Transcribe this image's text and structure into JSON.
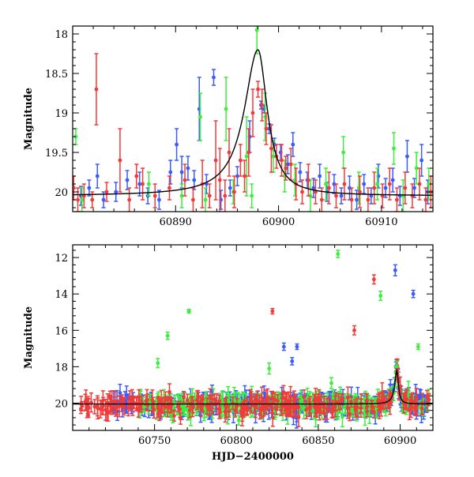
{
  "chart_data": [
    {
      "type": "scatter",
      "panel": "top",
      "title": "",
      "xlabel": "",
      "ylabel": "Magnitude",
      "xlim": [
        60880,
        60915
      ],
      "ylim": [
        20.25,
        17.9
      ],
      "y_inverted": true,
      "xticks": [
        60890,
        60900,
        60910
      ],
      "xtick_labels": [
        "60890",
        "60900",
        "60910"
      ],
      "yticks": [
        18,
        18.5,
        19,
        19.5,
        20
      ],
      "ytick_labels": [
        "18",
        "18.5",
        "19",
        "19.5",
        "20"
      ],
      "grid": false,
      "legend": "none",
      "model_curve": {
        "color": "#000000",
        "peak_x": 60898.0,
        "peak_y": 18.2,
        "baseline_y": 20.05
      },
      "series": [
        {
          "color": "#3a5bff",
          "points": [
            [
              60880.8,
              20.05,
              0.12
            ],
            [
              60881.6,
              19.95,
              0.1
            ],
            [
              60882.4,
              19.8,
              0.15
            ],
            [
              60883.0,
              20.1,
              0.1
            ],
            [
              60884.2,
              20.0,
              0.12
            ],
            [
              60885.3,
              19.85,
              0.12
            ],
            [
              60886.5,
              19.9,
              0.15
            ],
            [
              60887.3,
              20.05,
              0.1
            ],
            [
              60888.4,
              20.1,
              0.12
            ],
            [
              60889.5,
              19.75,
              0.15
            ],
            [
              60890.1,
              19.4,
              0.2
            ],
            [
              60890.6,
              19.75,
              0.2
            ],
            [
              60891.2,
              19.7,
              0.15
            ],
            [
              60891.8,
              19.85,
              0.12
            ],
            [
              60892.3,
              18.95,
              0.4
            ],
            [
              60893.0,
              19.9,
              0.12
            ],
            [
              60893.7,
              18.55,
              0.1
            ],
            [
              60894.4,
              20.1,
              0.12
            ],
            [
              60895.3,
              19.95,
              0.1
            ],
            [
              60896.0,
              19.8,
              0.12
            ],
            [
              60897.2,
              19.3,
              0.2
            ],
            [
              60898.3,
              18.9,
              0.05
            ],
            [
              60898.6,
              18.95,
              0.05
            ],
            [
              60899.1,
              19.2,
              0.06
            ],
            [
              60899.6,
              19.4,
              0.08
            ],
            [
              60900.2,
              19.5,
              0.1
            ],
            [
              60900.9,
              19.65,
              0.12
            ],
            [
              60901.4,
              19.4,
              0.15
            ],
            [
              60902.1,
              19.75,
              0.12
            ],
            [
              60902.8,
              19.85,
              0.1
            ],
            [
              60903.4,
              19.95,
              0.12
            ],
            [
              60904.0,
              19.8,
              0.15
            ],
            [
              60904.7,
              20.0,
              0.12
            ],
            [
              60905.4,
              19.9,
              0.12
            ],
            [
              60906.1,
              20.05,
              0.1
            ],
            [
              60906.9,
              19.95,
              0.15
            ],
            [
              60907.6,
              20.1,
              0.12
            ],
            [
              60908.3,
              19.9,
              0.12
            ],
            [
              60909.0,
              20.05,
              0.1
            ],
            [
              60909.7,
              19.8,
              0.15
            ],
            [
              60910.4,
              19.95,
              0.12
            ],
            [
              60911.1,
              19.85,
              0.15
            ],
            [
              60911.8,
              20.05,
              0.12
            ],
            [
              60912.5,
              19.55,
              0.2
            ],
            [
              60913.2,
              19.95,
              0.12
            ],
            [
              60913.9,
              19.6,
              0.2
            ],
            [
              60914.5,
              20.0,
              0.15
            ]
          ]
        },
        {
          "color": "#3bef3b",
          "points": [
            [
              60880.3,
              19.3,
              0.1
            ],
            [
              60880.9,
              20.1,
              0.15
            ],
            [
              60887.4,
              19.9,
              0.15
            ],
            [
              60890.6,
              20.05,
              0.15
            ],
            [
              60892.4,
              19.05,
              0.3
            ],
            [
              60892.9,
              20.1,
              0.15
            ],
            [
              60894.9,
              18.95,
              0.4
            ],
            [
              60895.6,
              20.0,
              0.15
            ],
            [
              60896.9,
              19.55,
              0.5
            ],
            [
              60897.4,
              20.05,
              0.15
            ],
            [
              60897.9,
              17.95,
              0.3
            ],
            [
              60898.7,
              19.05,
              0.3
            ],
            [
              60899.5,
              19.55,
              0.2
            ],
            [
              60900.6,
              19.8,
              0.2
            ],
            [
              60901.6,
              19.85,
              0.2
            ],
            [
              60903.1,
              20.05,
              0.2
            ],
            [
              60904.6,
              19.9,
              0.2
            ],
            [
              60906.3,
              19.5,
              0.2
            ],
            [
              60907.8,
              19.95,
              0.2
            ],
            [
              60909.6,
              19.9,
              0.2
            ],
            [
              60911.2,
              19.45,
              0.2
            ],
            [
              60912.1,
              20.05,
              0.2
            ],
            [
              60913.4,
              19.7,
              0.2
            ],
            [
              60914.6,
              19.9,
              0.2
            ]
          ]
        },
        {
          "color": "#f03b3b",
          "points": [
            [
              60880.1,
              19.95,
              0.15
            ],
            [
              60880.5,
              20.1,
              0.15
            ],
            [
              60881.1,
              20.05,
              0.15
            ],
            [
              60881.9,
              20.1,
              0.1
            ],
            [
              60882.3,
              18.7,
              0.45
            ],
            [
              60883.3,
              20.0,
              0.12
            ],
            [
              60884.6,
              19.6,
              0.4
            ],
            [
              60885.5,
              20.1,
              0.15
            ],
            [
              60886.2,
              19.8,
              0.15
            ],
            [
              60886.8,
              19.9,
              0.2
            ],
            [
              60888.0,
              20.05,
              0.15
            ],
            [
              60889.4,
              19.95,
              0.15
            ],
            [
              60890.9,
              19.85,
              0.2
            ],
            [
              60891.7,
              20.1,
              0.15
            ],
            [
              60892.6,
              19.9,
              0.3
            ],
            [
              60893.3,
              20.05,
              0.15
            ],
            [
              60893.9,
              19.6,
              0.5
            ],
            [
              60894.3,
              19.85,
              0.4
            ],
            [
              60894.8,
              20.05,
              0.2
            ],
            [
              60895.2,
              19.5,
              0.3
            ],
            [
              60895.7,
              20.0,
              0.2
            ],
            [
              60896.3,
              19.6,
              0.2
            ],
            [
              60896.7,
              19.8,
              0.2
            ],
            [
              60897.1,
              19.5,
              0.3
            ],
            [
              60897.5,
              19.0,
              0.3
            ],
            [
              60898.0,
              18.7,
              0.1
            ],
            [
              60898.4,
              18.9,
              0.2
            ],
            [
              60898.8,
              19.2,
              0.2
            ],
            [
              60899.3,
              19.45,
              0.3
            ],
            [
              60899.8,
              19.55,
              0.15
            ],
            [
              60900.3,
              19.6,
              0.2
            ],
            [
              60900.7,
              19.7,
              0.15
            ],
            [
              60901.2,
              19.65,
              0.2
            ],
            [
              60901.7,
              19.9,
              0.2
            ],
            [
              60902.3,
              20.0,
              0.15
            ],
            [
              60902.9,
              19.85,
              0.2
            ],
            [
              60903.6,
              20.0,
              0.15
            ],
            [
              60904.2,
              20.1,
              0.15
            ],
            [
              60904.9,
              19.95,
              0.2
            ],
            [
              60905.6,
              20.05,
              0.15
            ],
            [
              60906.4,
              19.9,
              0.2
            ],
            [
              60907.1,
              20.1,
              0.15
            ],
            [
              60907.9,
              20.0,
              0.2
            ],
            [
              60908.7,
              20.1,
              0.15
            ],
            [
              60909.3,
              19.95,
              0.2
            ],
            [
              60910.1,
              20.05,
              0.15
            ],
            [
              60910.8,
              19.9,
              0.2
            ],
            [
              60911.5,
              20.1,
              0.15
            ],
            [
              60912.3,
              19.95,
              0.2
            ],
            [
              60913.0,
              20.05,
              0.15
            ],
            [
              60913.7,
              19.9,
              0.2
            ],
            [
              60914.3,
              20.1,
              0.15
            ],
            [
              60914.8,
              20.0,
              0.2
            ]
          ]
        }
      ]
    },
    {
      "type": "scatter",
      "panel": "bottom",
      "title": "",
      "xlabel": "HJD−2400000",
      "ylabel": "Magnitude",
      "xlim": [
        60700,
        60920
      ],
      "ylim": [
        21.5,
        11.3
      ],
      "y_inverted": true,
      "xticks": [
        60750,
        60800,
        60850,
        60900
      ],
      "xtick_labels": [
        "60750",
        "60800",
        "60850",
        "60900"
      ],
      "yticks": [
        12,
        14,
        16,
        18,
        20
      ],
      "ytick_labels": [
        "12",
        "14",
        "16",
        "18",
        "20"
      ],
      "grid": false,
      "legend": "none",
      "baseline": {
        "x_start": 60705,
        "x_end": 60918,
        "mag": 20.1,
        "scatter": 0.3
      },
      "model_curve": {
        "color": "#000000",
        "peak_x": 60898.0,
        "peak_y": 18.2,
        "baseline_y": 20.05
      },
      "series": [
        {
          "color": "#3a5bff",
          "x_start": 60725,
          "outliers": [
            [
              60829,
              16.9,
              0.2
            ],
            [
              60834,
              17.7,
              0.2
            ],
            [
              60837,
              16.9,
              0.15
            ],
            [
              60897,
              12.7,
              0.3
            ],
            [
              60908,
              14.0,
              0.2
            ]
          ]
        },
        {
          "color": "#3bef3b",
          "x_start": 60740,
          "outliers": [
            [
              60752,
              17.8,
              0.25
            ],
            [
              60758,
              16.3,
              0.2
            ],
            [
              60771,
              14.95,
              0.1
            ],
            [
              60820,
              18.1,
              0.3
            ],
            [
              60858,
              18.9,
              0.3
            ],
            [
              60862,
              11.8,
              0.2
            ],
            [
              60888,
              14.1,
              0.25
            ],
            [
              60898,
              18.0,
              0.3
            ],
            [
              60911,
              16.9,
              0.15
            ]
          ]
        },
        {
          "color": "#f03b3b",
          "x_start": 60705,
          "outliers": [
            [
              60822,
              14.95,
              0.15
            ],
            [
              60872,
              16.0,
              0.25
            ],
            [
              60884,
              13.2,
              0.25
            ],
            [
              60898,
              18.4,
              0.3
            ]
          ]
        }
      ]
    }
  ]
}
